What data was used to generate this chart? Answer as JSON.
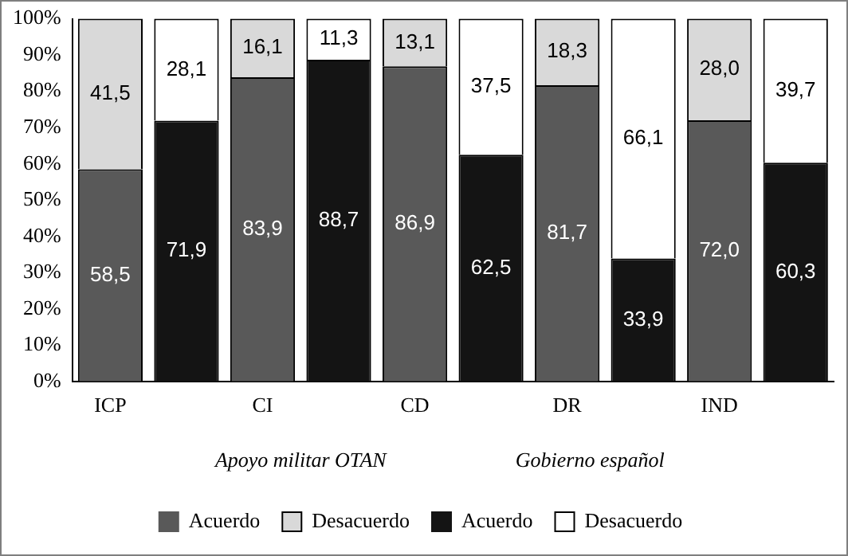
{
  "chart_data": {
    "type": "bar",
    "stacked": true,
    "categories": [
      "ICP",
      null,
      "CI",
      null,
      "CD",
      null,
      "DR",
      null,
      "IND",
      null
    ],
    "series": [
      {
        "name": "Acuerdo",
        "color": "#595959",
        "values": [
          58.5,
          null,
          83.9,
          null,
          86.9,
          null,
          81.7,
          null,
          72.0,
          null
        ],
        "value_labels": [
          "58,5",
          null,
          "83,9",
          null,
          "86,9",
          null,
          "81,7",
          null,
          "72,0",
          null
        ]
      },
      {
        "name": "Desacuerdo",
        "color": "#d9d9d9",
        "values": [
          41.5,
          null,
          16.1,
          null,
          13.1,
          null,
          18.3,
          null,
          28.0,
          null
        ],
        "value_labels": [
          "41,5",
          null,
          "16,1",
          null,
          "13,1",
          null,
          "18,3",
          null,
          "28,0",
          null
        ]
      },
      {
        "name": "Acuerdo",
        "color": "#141414",
        "values": [
          null,
          71.9,
          null,
          88.7,
          null,
          62.5,
          null,
          33.9,
          null,
          60.3
        ],
        "value_labels": [
          null,
          "71,9",
          null,
          "88,7",
          null,
          "62,5",
          null,
          "33,9",
          null,
          "60,3"
        ]
      },
      {
        "name": "Desacuerdo",
        "color": "#ffffff",
        "values": [
          null,
          28.1,
          null,
          11.3,
          null,
          37.5,
          null,
          66.1,
          null,
          39.7
        ],
        "value_labels": [
          null,
          "28,1",
          null,
          "11,3",
          null,
          "37,5",
          null,
          "66,1",
          null,
          "39,7"
        ]
      }
    ],
    "ylim": [
      0,
      100
    ],
    "yticks": [
      {
        "value": 0,
        "label": "0%"
      },
      {
        "value": 10,
        "label": "10%"
      },
      {
        "value": 20,
        "label": "20%"
      },
      {
        "value": 30,
        "label": "30%"
      },
      {
        "value": 40,
        "label": "40%"
      },
      {
        "value": 50,
        "label": "50%"
      },
      {
        "value": 60,
        "label": "60%"
      },
      {
        "value": 70,
        "label": "70%"
      },
      {
        "value": 80,
        "label": "80%"
      },
      {
        "value": 90,
        "label": "90%"
      },
      {
        "value": 100,
        "label": "100%"
      }
    ],
    "annotations": [
      "Apoyo militar OTAN",
      "Gobierno español"
    ],
    "legend": "bottom",
    "grid": false
  }
}
